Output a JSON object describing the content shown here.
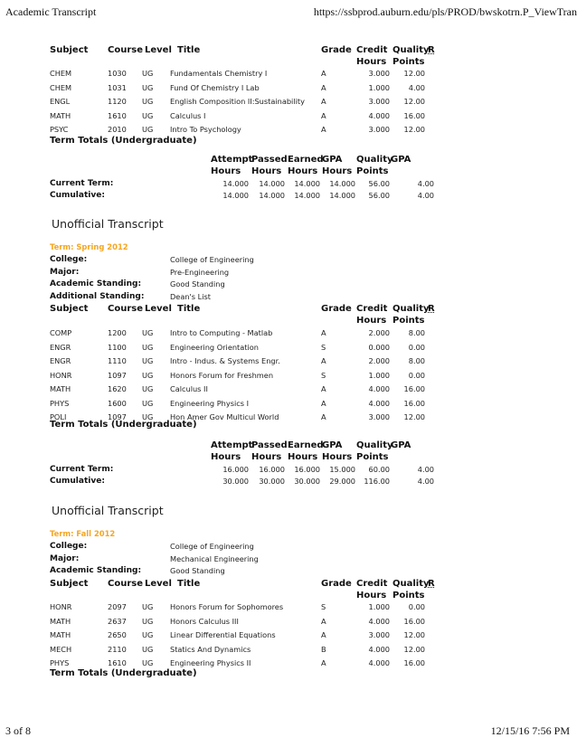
{
  "page_header": {
    "title": "Academic Transcript",
    "url": "https://ssbprod.auburn.edu/pls/PROD/bwskotrn.P_ViewTran"
  },
  "page_footer": {
    "page": "3 of 8",
    "datetime": "12/15/16 7:56 PM"
  },
  "course_headers": {
    "subject": "Subject",
    "course": "Course",
    "level": "Level",
    "title": "Title",
    "grade": "Grade",
    "credit1": "Credit",
    "credit2": "Hours",
    "quality1": "Quality",
    "r": "R",
    "quality2": "Points"
  },
  "totals_headers": {
    "attempt1": "Attempt",
    "attempt2": "Hours",
    "passed1": "Passed",
    "passed2": "Hours",
    "earned1": "Earned",
    "earned2": "Hours",
    "gpa1": "GPA",
    "gpa2": "Hours",
    "quality1": "Quality",
    "quality2": "Points",
    "gpa": "GPA"
  },
  "term_totals_label": "Term Totals (Undergraduate)",
  "unofficial_label": "Unofficial Transcript",
  "sections": [
    {
      "courses": [
        [
          "CHEM",
          "1030",
          "UG",
          "Fundamentals Chemistry I",
          "A",
          "3.000",
          "12.00"
        ],
        [
          "CHEM",
          "1031",
          "UG",
          "Fund Of Chemistry I Lab",
          "A",
          "1.000",
          "4.00"
        ],
        [
          "ENGL",
          "1120",
          "UG",
          "English Composition II:Sustainability",
          "A",
          "3.000",
          "12.00"
        ],
        [
          "MATH",
          "1610",
          "UG",
          "Calculus I",
          "A",
          "4.000",
          "16.00"
        ],
        [
          "PSYC",
          "2010",
          "UG",
          "Intro To Psychology",
          "A",
          "3.000",
          "12.00"
        ]
      ],
      "totals": [
        [
          "Current Term:",
          "14.000",
          "14.000",
          "14.000",
          "14.000",
          "56.00",
          "4.00"
        ],
        [
          "Cumulative:",
          "14.000",
          "14.000",
          "14.000",
          "14.000",
          "56.00",
          "4.00"
        ]
      ]
    },
    {
      "term": "Term: Spring 2012",
      "info": [
        [
          "College:",
          "College of Engineering"
        ],
        [
          "Major:",
          "Pre-Engineering"
        ],
        [
          "Academic Standing:",
          "Good Standing"
        ],
        [
          "Additional Standing:",
          "Dean's List"
        ]
      ],
      "courses": [
        [
          "COMP",
          "1200",
          "UG",
          "Intro to Computing - Matlab",
          "A",
          "2.000",
          "8.00"
        ],
        [
          "ENGR",
          "1100",
          "UG",
          "Engineering Orientation",
          "S",
          "0.000",
          "0.00"
        ],
        [
          "ENGR",
          "1110",
          "UG",
          "Intro - Indus. & Systems Engr.",
          "A",
          "2.000",
          "8.00"
        ],
        [
          "HONR",
          "1097",
          "UG",
          "Honors Forum for Freshmen",
          "S",
          "1.000",
          "0.00"
        ],
        [
          "MATH",
          "1620",
          "UG",
          "Calculus II",
          "A",
          "4.000",
          "16.00"
        ],
        [
          "PHYS",
          "1600",
          "UG",
          "Engineering Physics I",
          "A",
          "4.000",
          "16.00"
        ],
        [
          "POLI",
          "1097",
          "UG",
          "Hon Amer Gov Multicul World",
          "A",
          "3.000",
          "12.00"
        ]
      ],
      "totals": [
        [
          "Current Term:",
          "16.000",
          "16.000",
          "16.000",
          "15.000",
          "60.00",
          "4.00"
        ],
        [
          "Cumulative:",
          "30.000",
          "30.000",
          "30.000",
          "29.000",
          "116.00",
          "4.00"
        ]
      ]
    },
    {
      "term": "Term: Fall 2012",
      "info": [
        [
          "College:",
          "College of Engineering"
        ],
        [
          "Major:",
          "Mechanical Engineering"
        ],
        [
          "Academic Standing:",
          "Good Standing"
        ]
      ],
      "courses": [
        [
          "HONR",
          "2097",
          "UG",
          "Honors Forum for Sophomores",
          "S",
          "1.000",
          "0.00"
        ],
        [
          "MATH",
          "2637",
          "UG",
          "Honors Calculus III",
          "A",
          "4.000",
          "16.00"
        ],
        [
          "MATH",
          "2650",
          "UG",
          "Linear Differential Equations",
          "A",
          "3.000",
          "12.00"
        ],
        [
          "MECH",
          "2110",
          "UG",
          "Statics And Dynamics",
          "B",
          "4.000",
          "12.00"
        ],
        [
          "PHYS",
          "1610",
          "UG",
          "Engineering Physics II",
          "A",
          "4.000",
          "16.00"
        ]
      ]
    }
  ],
  "colors": {
    "term_heading": "#f5a623"
  }
}
